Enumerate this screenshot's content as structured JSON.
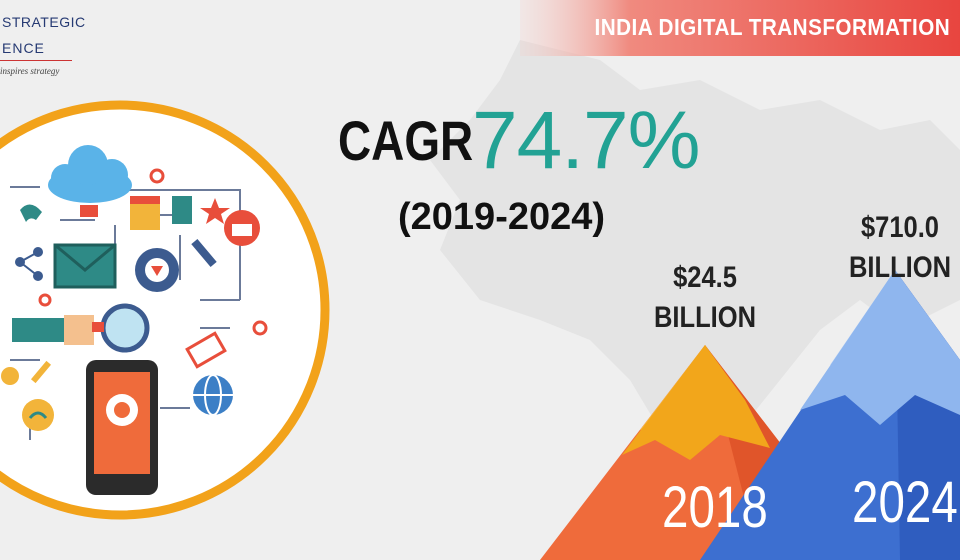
{
  "logo": {
    "line1": "STRATEGIC",
    "line2": "ENCE",
    "tagline": "inspires strategy"
  },
  "banner": {
    "title": "INDIA DIGITAL TRANSFORMATION",
    "color": "#e8453f"
  },
  "stats": {
    "cagr_label": "CAGR",
    "cagr_value": "74.7%",
    "period": "(2019-2024)",
    "accent": "#22a294"
  },
  "markets": [
    {
      "year": "2018",
      "value_line1": "$24.5",
      "value_line2": "BILLION"
    },
    {
      "year": "2024",
      "value_line1": "$710.0",
      "value_line2": "BILLION"
    }
  ],
  "icons": [
    "cloud-icon",
    "email-icon",
    "gear-icon",
    "magnifier-icon",
    "smartphone-icon",
    "globe-icon",
    "shopping-basket-icon",
    "wrench-icon",
    "share-icon",
    "wifi-icon",
    "price-tag-icon",
    "phone-icon",
    "storefront-icon",
    "star-icon",
    "bulb-icon",
    "pen-icon"
  ],
  "colors": {
    "orange": "#f2a61b",
    "red_orange": "#ef6b3b",
    "blue": "#3d7bd6",
    "light_blue": "#8fb6ee",
    "ring": "#f2a21a"
  }
}
